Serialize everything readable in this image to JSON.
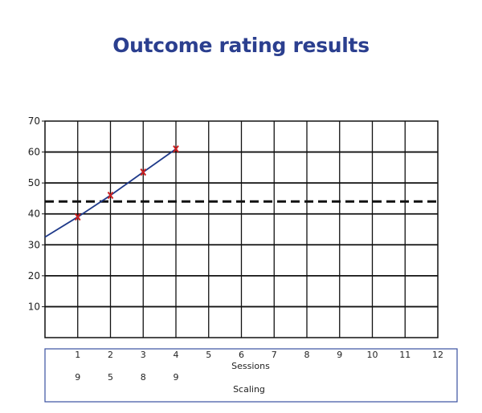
{
  "chart_data": {
    "type": "line",
    "title": "Outcome rating results",
    "xlabel": "Sessions",
    "ylabel": "",
    "ylim": [
      0,
      70
    ],
    "xlim": [
      0,
      12
    ],
    "x_ticks": [
      1,
      2,
      3,
      4,
      5,
      6,
      7,
      8,
      9,
      10,
      11,
      12
    ],
    "y_ticks": [
      10,
      20,
      30,
      40,
      50,
      60,
      70
    ],
    "grid": true,
    "series": [
      {
        "x": [
          1,
          2,
          3,
          4
        ],
        "values": [
          39,
          46,
          53.5,
          61
        ],
        "color": "#1f3a8a",
        "marker": "x",
        "marker_color": "#cc1f1f"
      }
    ],
    "trend_start": {
      "x": 0,
      "y": 32.5
    },
    "cutoff_line": {
      "value": 44,
      "style": "dashed"
    },
    "scaling": {
      "label": "Scaling",
      "sessions": [
        1,
        2,
        3,
        4
      ],
      "values": [
        "9",
        "5",
        "8",
        "9"
      ]
    },
    "table_border_color": "#3a50a0"
  }
}
